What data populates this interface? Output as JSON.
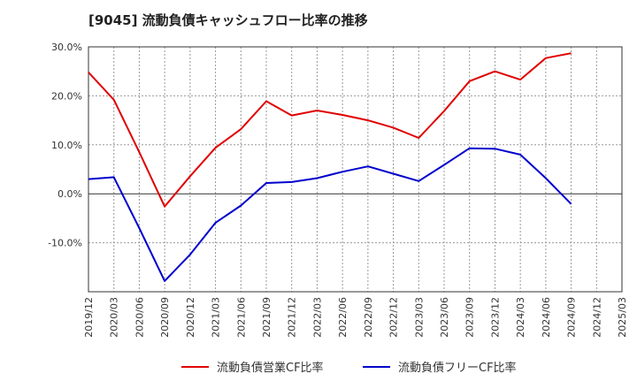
{
  "chart_data": {
    "type": "line",
    "title": "[9045]  流動負債キャッシュフロー比率の推移",
    "xlabel": "",
    "ylabel": "",
    "ylim": [
      -20,
      30
    ],
    "y_ticks": [
      30,
      20,
      10,
      0,
      -10
    ],
    "y_tick_labels": [
      "30.0%",
      "20.0%",
      "10.0%",
      "0.0%",
      "-10.0%"
    ],
    "categories": [
      "2019/12",
      "2020/03",
      "2020/06",
      "2020/09",
      "2020/12",
      "2021/03",
      "2021/06",
      "2021/09",
      "2021/12",
      "2022/03",
      "2022/06",
      "2022/09",
      "2022/12",
      "2023/03",
      "2023/06",
      "2023/09",
      "2023/12",
      "2024/03",
      "2024/06",
      "2024/09",
      "2024/12",
      "2025/03"
    ],
    "grid": true,
    "legend_position": "bottom",
    "series": [
      {
        "name": "流動負債営業CF比率",
        "color": "#e00000",
        "values": [
          24.8,
          19.2,
          8.5,
          -2.6,
          3.6,
          9.4,
          13.2,
          18.9,
          16.0,
          17.0,
          16.1,
          15.0,
          13.5,
          11.4,
          16.9,
          23.0,
          25.0,
          23.3,
          27.7,
          28.7,
          null,
          null
        ]
      },
      {
        "name": "流動負債フリーCF比率",
        "color": "#0000cc",
        "values": [
          3.0,
          3.4,
          -7.0,
          -17.8,
          -12.4,
          -5.9,
          -2.4,
          2.2,
          2.4,
          3.2,
          4.5,
          5.6,
          4.1,
          2.6,
          5.9,
          9.3,
          9.2,
          8.0,
          3.2,
          -2.1,
          null,
          null
        ]
      }
    ]
  }
}
